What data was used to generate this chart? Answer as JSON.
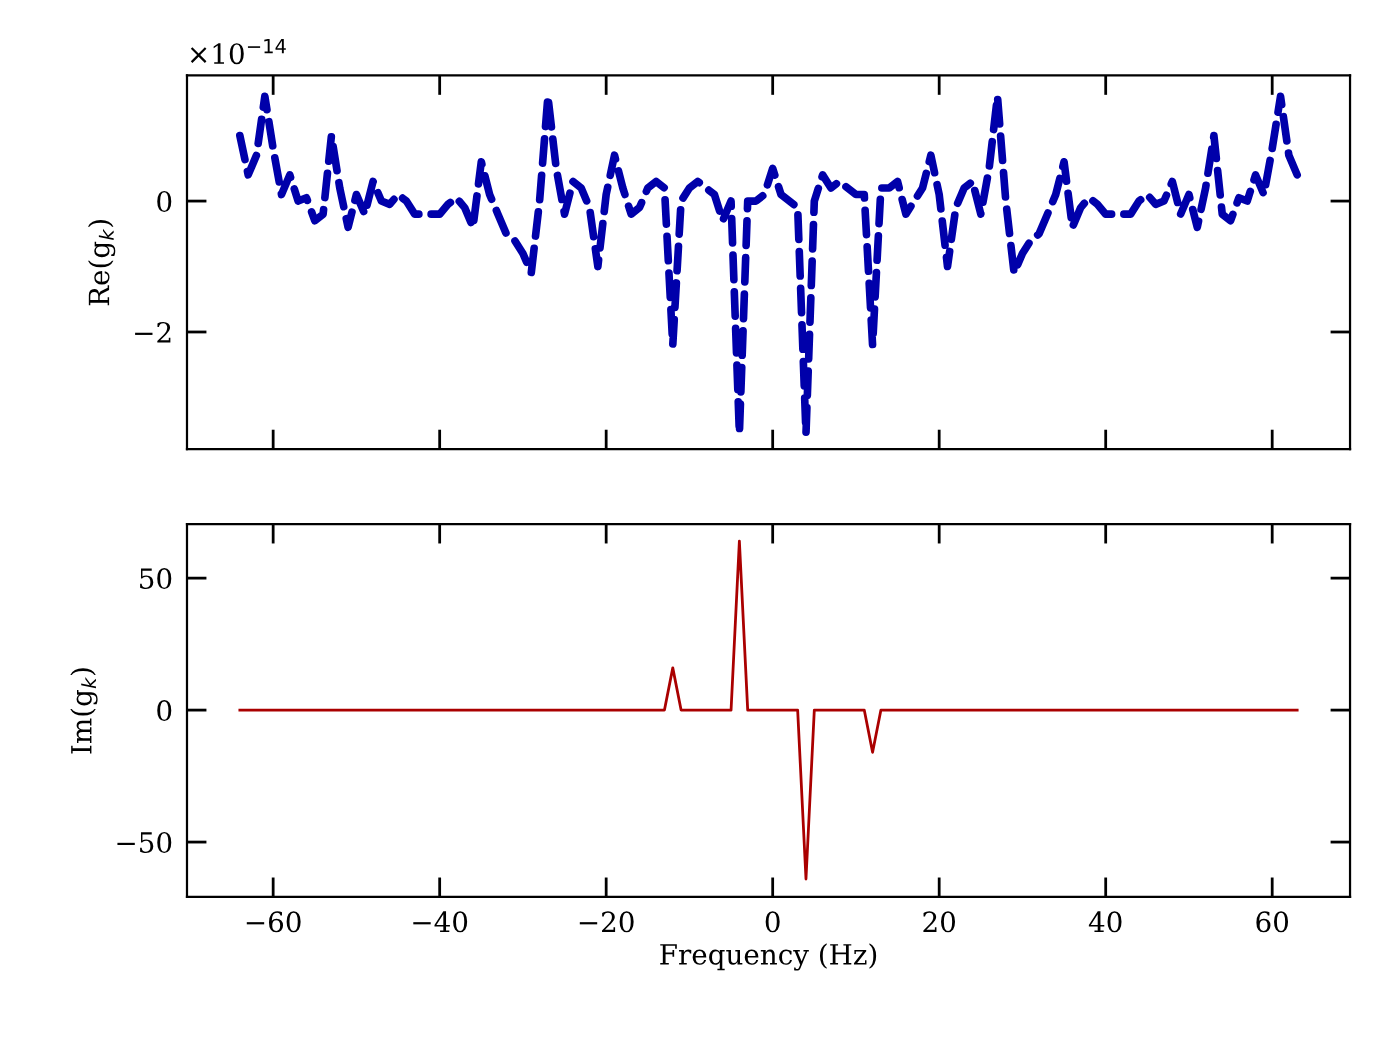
{
  "chart_data": [
    {
      "type": "line",
      "ylabel": "Re(g$_{k}$)",
      "annotations": [
        "×10$^{−14}$"
      ],
      "series": [
        {
          "color": "#0000aa",
          "line_style": "dashed",
          "x": [
            -64,
            -63,
            -62,
            -61,
            -60,
            -59,
            -58,
            -57,
            -56,
            -55,
            -54,
            -53,
            -52,
            -51,
            -50,
            -49,
            -48,
            -47,
            -46,
            -45,
            -44,
            -43,
            -42,
            -41,
            -40,
            -39,
            -38,
            -37,
            -36,
            -35,
            -34,
            -33,
            -32,
            -31,
            -30,
            -29,
            -28,
            -27,
            -26,
            -25,
            -24,
            -23,
            -22,
            -21,
            -20,
            -19,
            -18,
            -17,
            -16,
            -15,
            -14,
            -13,
            -12,
            -11,
            -10,
            -9,
            -8,
            -7,
            -6,
            -5,
            -4,
            -3,
            -2,
            -1,
            0,
            1,
            2,
            3,
            4,
            5,
            6,
            7,
            8,
            9,
            10,
            11,
            12,
            13,
            14,
            15,
            16,
            17,
            18,
            19,
            20,
            21,
            22,
            23,
            24,
            25,
            26,
            27,
            28,
            29,
            30,
            31,
            32,
            33,
            34,
            35,
            36,
            37,
            38,
            39,
            40,
            41,
            42,
            43,
            44,
            45,
            46,
            47,
            48,
            49,
            50,
            51,
            52,
            53,
            54,
            55,
            56,
            57,
            58,
            59,
            60,
            61,
            62,
            63
          ],
          "values": [
            1.0,
            0.4,
            0.7,
            1.6,
            0.8,
            0.1,
            0.4,
            0.0,
            0.05,
            -0.3,
            -0.2,
            1.0,
            0.2,
            -0.4,
            0.1,
            -0.2,
            0.3,
            0.0,
            -0.05,
            0.1,
            0.0,
            -0.2,
            -0.2,
            -0.2,
            -0.2,
            -0.05,
            0.05,
            -0.1,
            -0.4,
            0.6,
            0.1,
            -0.2,
            -0.5,
            -0.6,
            -0.8,
            -1.1,
            0.0,
            1.6,
            0.5,
            -0.2,
            0.3,
            0.2,
            -0.1,
            -1.0,
            0.1,
            0.7,
            0.2,
            -0.2,
            -0.1,
            0.2,
            0.3,
            0.2,
            -2.2,
            0.0,
            0.2,
            0.3,
            0.2,
            0.1,
            -0.3,
            0.0,
            -3.55,
            0.0,
            0.0,
            0.1,
            0.5,
            0.1,
            0.0,
            -0.1,
            -3.55,
            0.0,
            0.4,
            0.2,
            0.3,
            0.2,
            0.1,
            0.1,
            -2.2,
            0.2,
            0.2,
            0.3,
            -0.2,
            0.0,
            0.2,
            0.7,
            0.1,
            -1.0,
            -0.1,
            0.2,
            0.3,
            -0.2,
            0.5,
            1.6,
            0.0,
            -1.1,
            -0.8,
            -0.6,
            -0.5,
            -0.2,
            0.1,
            0.6,
            -0.4,
            -0.1,
            0.05,
            -0.05,
            -0.2,
            -0.2,
            -0.2,
            -0.2,
            0.0,
            0.1,
            -0.05,
            0.0,
            0.3,
            -0.2,
            0.1,
            -0.4,
            0.2,
            1.0,
            -0.2,
            -0.3,
            0.05,
            0.0,
            0.4,
            0.1,
            0.8,
            1.6,
            0.7,
            0.4
          ]
        }
      ],
      "xlim": [
        -70.35,
        69.35
      ],
      "xticks": [
        -60,
        -40,
        -20,
        0,
        20,
        40,
        60
      ],
      "ylim": [
        -3.79,
        1.92
      ],
      "yticks": [
        {
          "value": -2,
          "label": "−2"
        },
        0
      ],
      "tick_labels": "y"
    },
    {
      "type": "line",
      "xlabel": "Frequency (Hz)",
      "ylabel": "Im(g$_{k}$)",
      "series": [
        {
          "color": "#aa0000",
          "line_style": "solid",
          "x": [
            -64,
            -13,
            -12,
            -11,
            -5,
            -4,
            -3,
            3,
            4,
            5,
            11,
            12,
            13,
            63
          ],
          "values": [
            0,
            0,
            16,
            0,
            0,
            64,
            0,
            0,
            -64,
            0,
            0,
            -16,
            0,
            0
          ]
        }
      ],
      "xlim": [
        -70.35,
        69.35
      ],
      "xticks": [
        {
          "value": -60,
          "label": "−60"
        },
        {
          "value": -40,
          "label": "−40"
        },
        {
          "value": -20,
          "label": "−20"
        },
        0,
        20,
        40,
        60
      ],
      "ylim": [
        -70.8,
        70.5
      ],
      "yticks": [
        {
          "value": -50,
          "label": "−50"
        },
        0,
        50
      ]
    }
  ]
}
